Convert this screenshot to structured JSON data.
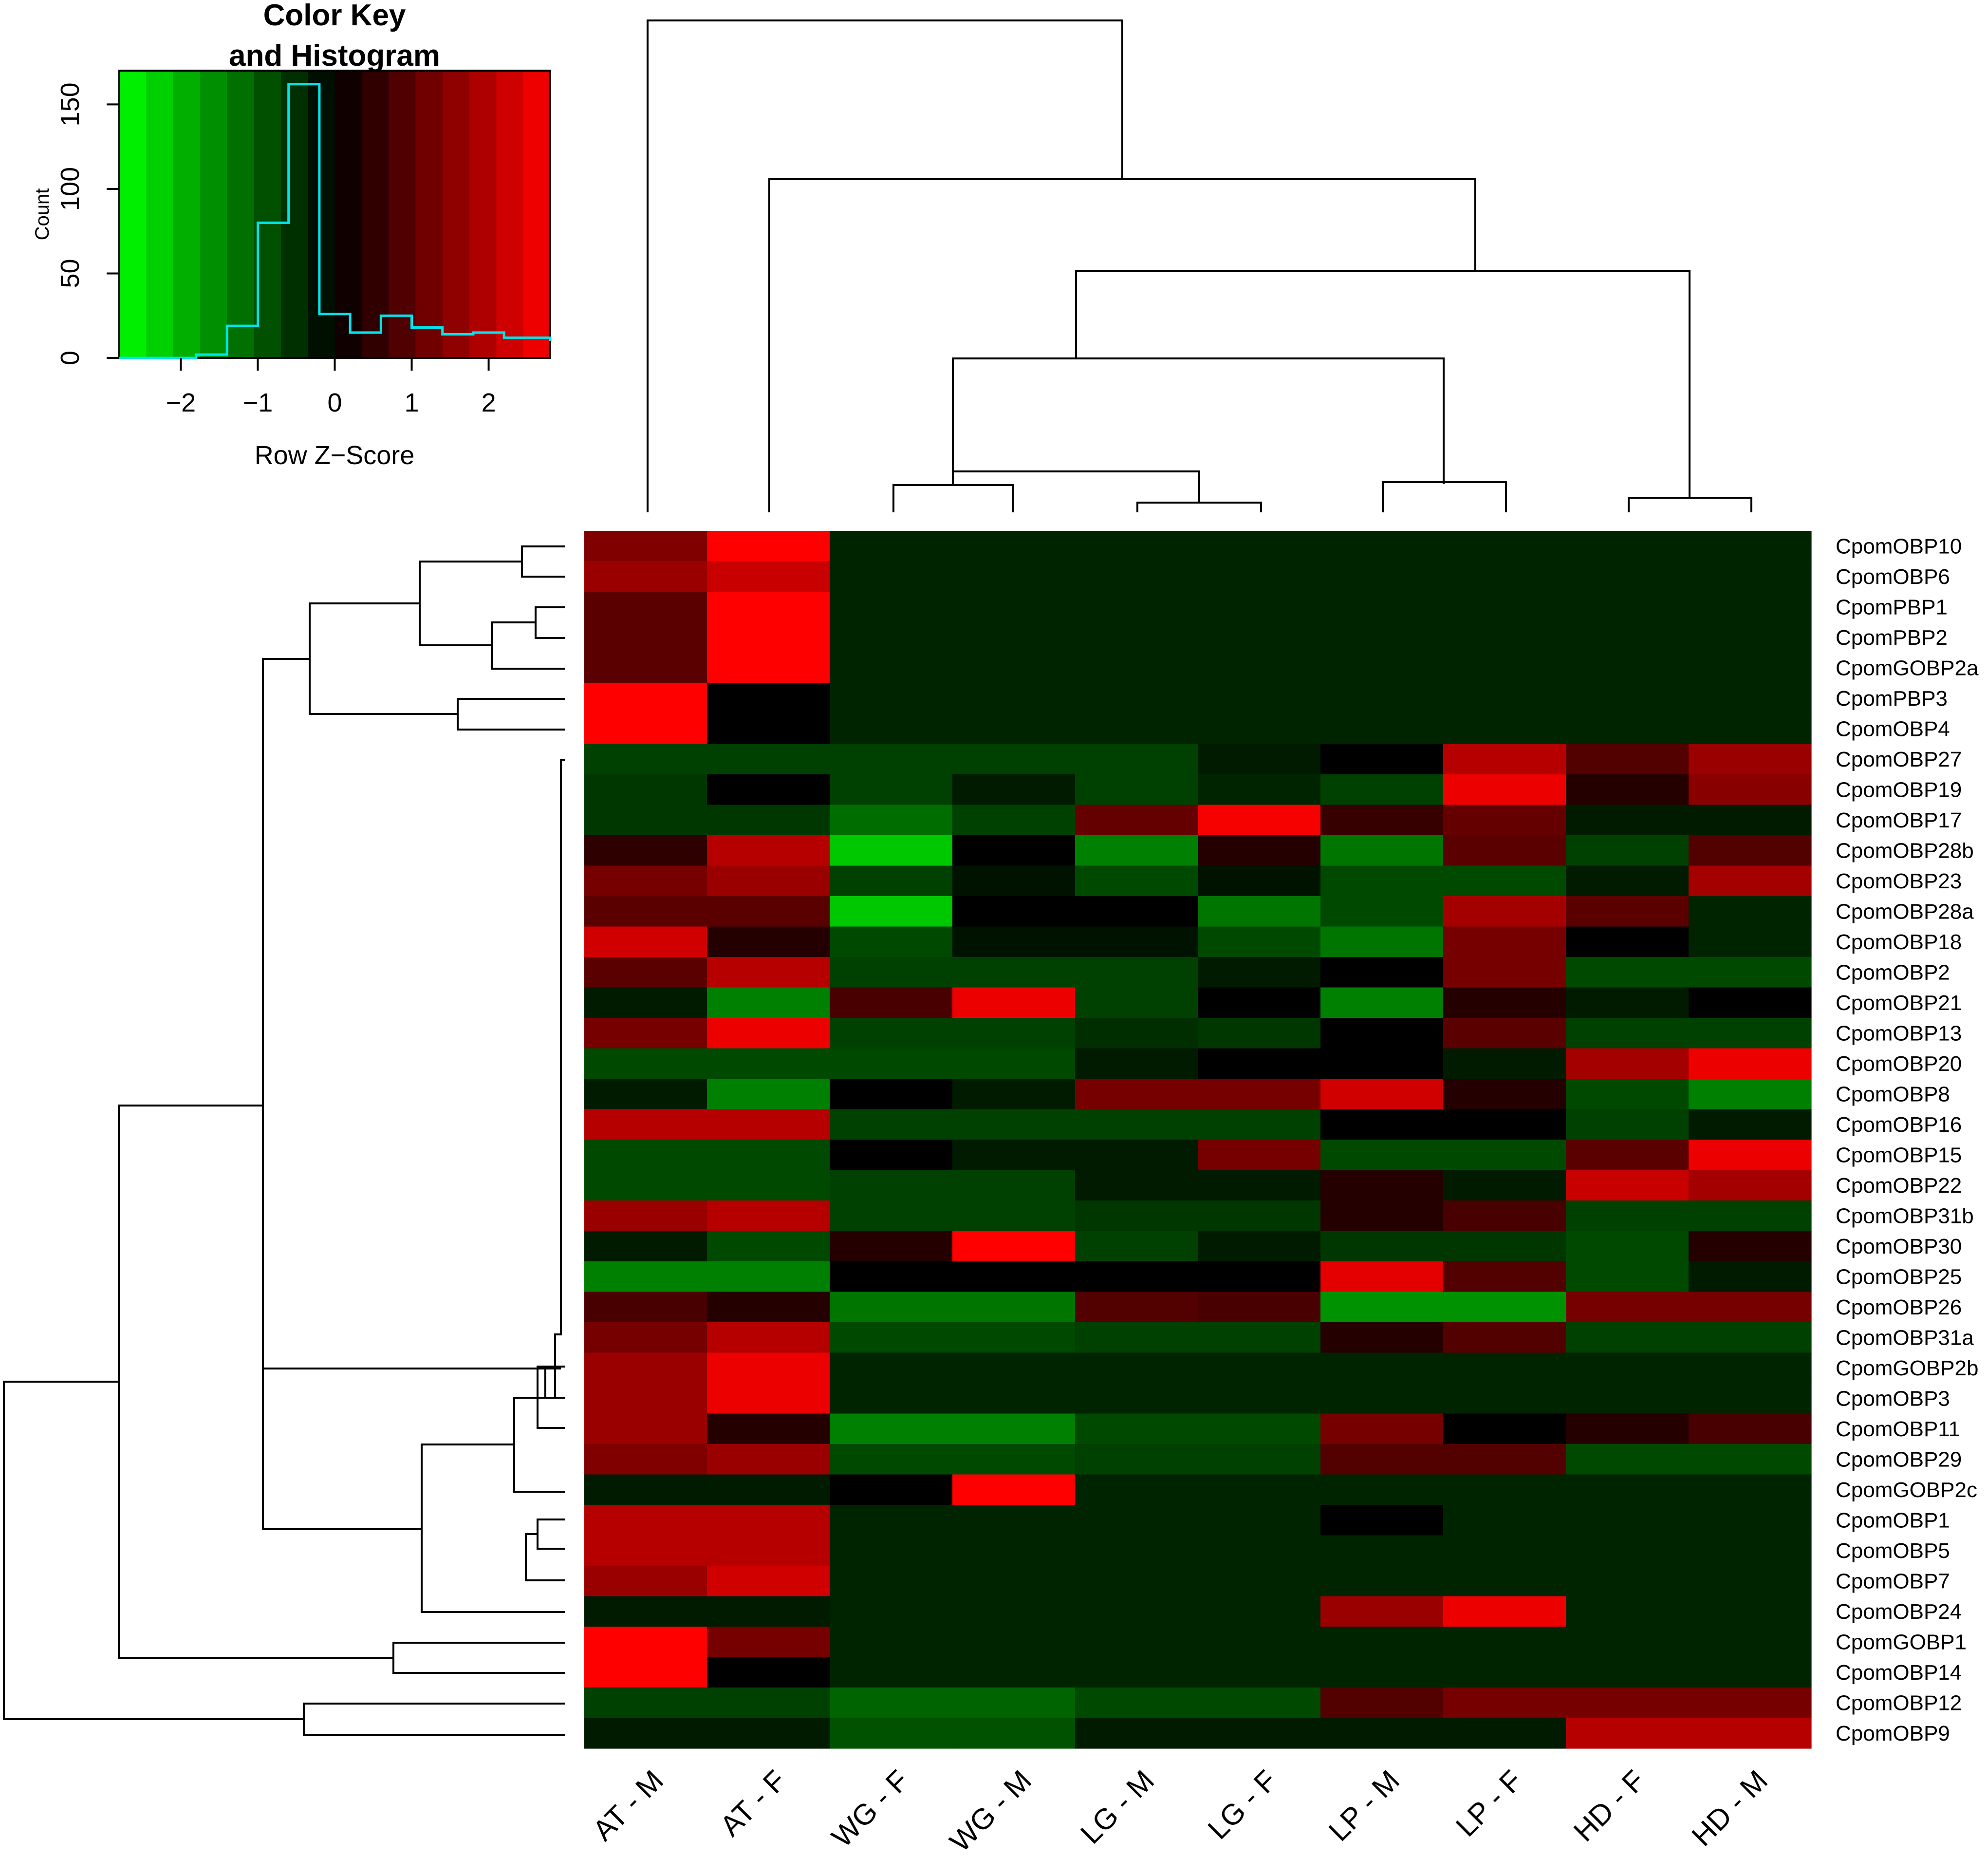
{
  "chart_data": [
    {
      "type": "heatmap",
      "title": "",
      "columns": [
        "AT - M",
        "AT - F",
        "WG - F",
        "WG - M",
        "LG - M",
        "LG - F",
        "LP - M",
        "LP - F",
        "HD - F",
        "HD - M"
      ],
      "rows": [
        "CpomOBP10",
        "CpomOBP6",
        "CpomPBP1",
        "CpomPBP2",
        "CpomGOBP2a",
        "CpomPBP3",
        "CpomOBP4",
        "CpomOBP27",
        "CpomOBP19",
        "CpomOBP17",
        "CpomOBP28b",
        "CpomOBP23",
        "CpomOBP28a",
        "CpomOBP18",
        "CpomOBP2",
        "CpomOBP21",
        "CpomOBP13",
        "CpomOBP20",
        "CpomOBP8",
        "CpomOBP16",
        "CpomOBP15",
        "CpomOBP22",
        "CpomOBP31b",
        "CpomOBP30",
        "CpomOBP25",
        "CpomOBP26",
        "CpomOBP31a",
        "CpomGOBP2b",
        "CpomOBP3",
        "CpomOBP11",
        "CpomOBP29",
        "CpomGOBP2c",
        "CpomOBP1",
        "CpomOBP5",
        "CpomOBP7",
        "CpomOBP24",
        "CpomGOBP1",
        "CpomOBP14",
        "CpomOBP12",
        "CpomOBP9"
      ],
      "color_scale": {
        "low": "#00ff00",
        "mid": "#000000",
        "high": "#ff0000",
        "min": -2.8,
        "max": 2.8
      },
      "values": [
        [
          1.4,
          2.8,
          -0.4,
          -0.4,
          -0.4,
          -0.4,
          -0.4,
          -0.4,
          -0.4,
          -0.4
        ],
        [
          1.7,
          2.2,
          -0.4,
          -0.4,
          -0.4,
          -0.4,
          -0.4,
          -0.4,
          -0.4,
          -0.4
        ],
        [
          1.0,
          2.8,
          -0.4,
          -0.4,
          -0.4,
          -0.4,
          -0.4,
          -0.4,
          -0.4,
          -0.4
        ],
        [
          1.0,
          2.8,
          -0.4,
          -0.4,
          -0.4,
          -0.4,
          -0.4,
          -0.4,
          -0.4,
          -0.4
        ],
        [
          1.0,
          2.8,
          -0.4,
          -0.4,
          -0.4,
          -0.4,
          -0.4,
          -0.4,
          -0.4,
          -0.4
        ],
        [
          2.8,
          0.0,
          -0.4,
          -0.4,
          -0.4,
          -0.4,
          -0.4,
          -0.4,
          -0.4,
          -0.4
        ],
        [
          2.8,
          0.0,
          -0.4,
          -0.4,
          -0.4,
          -0.4,
          -0.4,
          -0.4,
          -0.4,
          -0.4
        ],
        [
          -0.7,
          -0.7,
          -0.7,
          -0.7,
          -0.7,
          -0.3,
          0.0,
          2.0,
          0.9,
          1.7
        ],
        [
          -0.6,
          0.0,
          -0.7,
          -0.3,
          -0.7,
          -0.4,
          -0.7,
          2.6,
          0.4,
          1.5
        ],
        [
          -0.6,
          -0.6,
          -1.2,
          -0.7,
          1.1,
          2.7,
          0.6,
          1.1,
          -0.3,
          -0.3
        ],
        [
          0.5,
          2.0,
          -2.2,
          0.0,
          -1.4,
          0.4,
          -1.3,
          1.0,
          -0.7,
          0.9
        ],
        [
          1.3,
          1.7,
          -0.7,
          -0.2,
          -0.8,
          -0.2,
          -0.8,
          -0.8,
          -0.3,
          1.8
        ],
        [
          1.0,
          1.0,
          -2.2,
          0.0,
          0.0,
          -1.3,
          -0.8,
          1.8,
          1.0,
          -0.4
        ],
        [
          2.3,
          0.4,
          -0.8,
          -0.2,
          -0.2,
          -0.8,
          -1.3,
          1.3,
          0.0,
          -0.4
        ],
        [
          1.0,
          2.0,
          -0.7,
          -0.7,
          -0.7,
          -0.3,
          0.0,
          1.3,
          -0.8,
          -0.8
        ],
        [
          -0.3,
          -1.4,
          0.8,
          2.6,
          -0.7,
          0.0,
          -1.4,
          0.4,
          -0.3,
          0.0
        ],
        [
          1.3,
          2.6,
          -0.7,
          -0.7,
          -0.5,
          -0.6,
          0.0,
          1.0,
          -0.7,
          -0.7
        ],
        [
          -0.8,
          -0.8,
          -0.8,
          -0.8,
          -0.3,
          0.0,
          0.0,
          -0.3,
          1.8,
          2.6
        ],
        [
          -0.3,
          -1.4,
          0.0,
          -0.3,
          1.3,
          1.3,
          2.3,
          0.4,
          -0.8,
          -1.4
        ],
        [
          2.0,
          2.0,
          -0.7,
          -0.7,
          -0.7,
          -0.7,
          0.0,
          0.0,
          -0.7,
          -0.3
        ],
        [
          -0.8,
          -0.8,
          0.0,
          -0.3,
          -0.3,
          1.3,
          -0.8,
          -0.8,
          1.0,
          2.6
        ],
        [
          -0.8,
          -0.8,
          -0.7,
          -0.7,
          -0.3,
          -0.3,
          0.4,
          -0.3,
          2.2,
          1.8
        ],
        [
          1.7,
          2.0,
          -0.7,
          -0.7,
          -0.6,
          -0.6,
          0.4,
          0.8,
          -0.7,
          -0.7
        ],
        [
          -0.3,
          -0.8,
          0.4,
          2.8,
          -0.7,
          -0.3,
          -0.6,
          -0.6,
          -0.8,
          0.4
        ],
        [
          -1.4,
          -1.4,
          0.0,
          0.0,
          0.0,
          0.0,
          2.5,
          0.9,
          -0.8,
          -0.3
        ],
        [
          0.8,
          0.4,
          -1.3,
          -1.3,
          0.9,
          0.8,
          -1.6,
          -1.6,
          1.3,
          1.3
        ],
        [
          1.3,
          2.0,
          -0.8,
          -0.8,
          -0.7,
          -0.7,
          0.4,
          0.9,
          -0.7,
          -0.7
        ],
        [
          1.7,
          2.6,
          -0.4,
          -0.4,
          -0.4,
          -0.4,
          -0.4,
          -0.4,
          -0.4,
          -0.4
        ],
        [
          1.7,
          2.6,
          -0.4,
          -0.4,
          -0.4,
          -0.4,
          -0.4,
          -0.4,
          -0.4,
          -0.4
        ],
        [
          1.7,
          0.4,
          -1.4,
          -1.4,
          -0.8,
          -0.8,
          1.3,
          0.0,
          0.4,
          0.8
        ],
        [
          1.4,
          1.7,
          -0.8,
          -0.8,
          -0.7,
          -0.7,
          0.9,
          0.9,
          -0.8,
          -0.8
        ],
        [
          -0.3,
          -0.3,
          0.0,
          2.8,
          -0.4,
          -0.4,
          -0.4,
          -0.4,
          -0.4,
          -0.4
        ],
        [
          2.0,
          2.0,
          -0.4,
          -0.4,
          -0.4,
          -0.4,
          0.0,
          -0.4,
          -0.4,
          -0.4
        ],
        [
          2.0,
          2.0,
          -0.4,
          -0.4,
          -0.4,
          -0.4,
          -0.4,
          -0.4,
          -0.4,
          -0.4
        ],
        [
          1.7,
          2.3,
          -0.4,
          -0.4,
          -0.4,
          -0.4,
          -0.4,
          -0.4,
          -0.4,
          -0.4
        ],
        [
          -0.3,
          -0.3,
          -0.4,
          -0.4,
          -0.4,
          -0.4,
          1.7,
          2.6,
          -0.4,
          -0.4
        ],
        [
          2.8,
          1.3,
          -0.4,
          -0.4,
          -0.4,
          -0.4,
          -0.4,
          -0.4,
          -0.4,
          -0.4
        ],
        [
          2.8,
          0.0,
          -0.4,
          -0.4,
          -0.4,
          -0.4,
          -0.4,
          -0.4,
          -0.4,
          -0.4
        ],
        [
          -0.7,
          -0.7,
          -1.1,
          -1.1,
          -0.8,
          -0.8,
          0.9,
          1.3,
          1.3,
          1.3
        ],
        [
          -0.3,
          -0.3,
          -0.9,
          -0.9,
          -0.3,
          -0.3,
          -0.3,
          -0.3,
          2.0,
          2.0
        ]
      ]
    },
    {
      "type": "bar",
      "title": "Color Key\nand Histogram",
      "title_lines": [
        "Color Key",
        "and Histogram"
      ],
      "xlabel": "Row Z−Score",
      "ylabel": "Count",
      "xlim": [
        -2.8,
        2.8
      ],
      "ylim": [
        0,
        170
      ],
      "xticks": [
        -2,
        -1,
        0,
        1,
        2
      ],
      "xtick_labels": [
        "−2",
        "−1",
        "0",
        "1",
        "2"
      ],
      "yticks": [
        0,
        50,
        100,
        150
      ],
      "ytick_labels": [
        "0",
        "50",
        "100",
        "150"
      ],
      "bin_edges": [
        -2.8,
        -1.8,
        -1.4,
        -1.0,
        -0.6,
        -0.2,
        0.2,
        0.6,
        1.0,
        1.4,
        1.8,
        2.2,
        2.8
      ],
      "counts": [
        0,
        2,
        19,
        80,
        162,
        26,
        15,
        25,
        18,
        14,
        15,
        12
      ],
      "last_count": 10,
      "histogram_color": "#00e5ee"
    }
  ]
}
